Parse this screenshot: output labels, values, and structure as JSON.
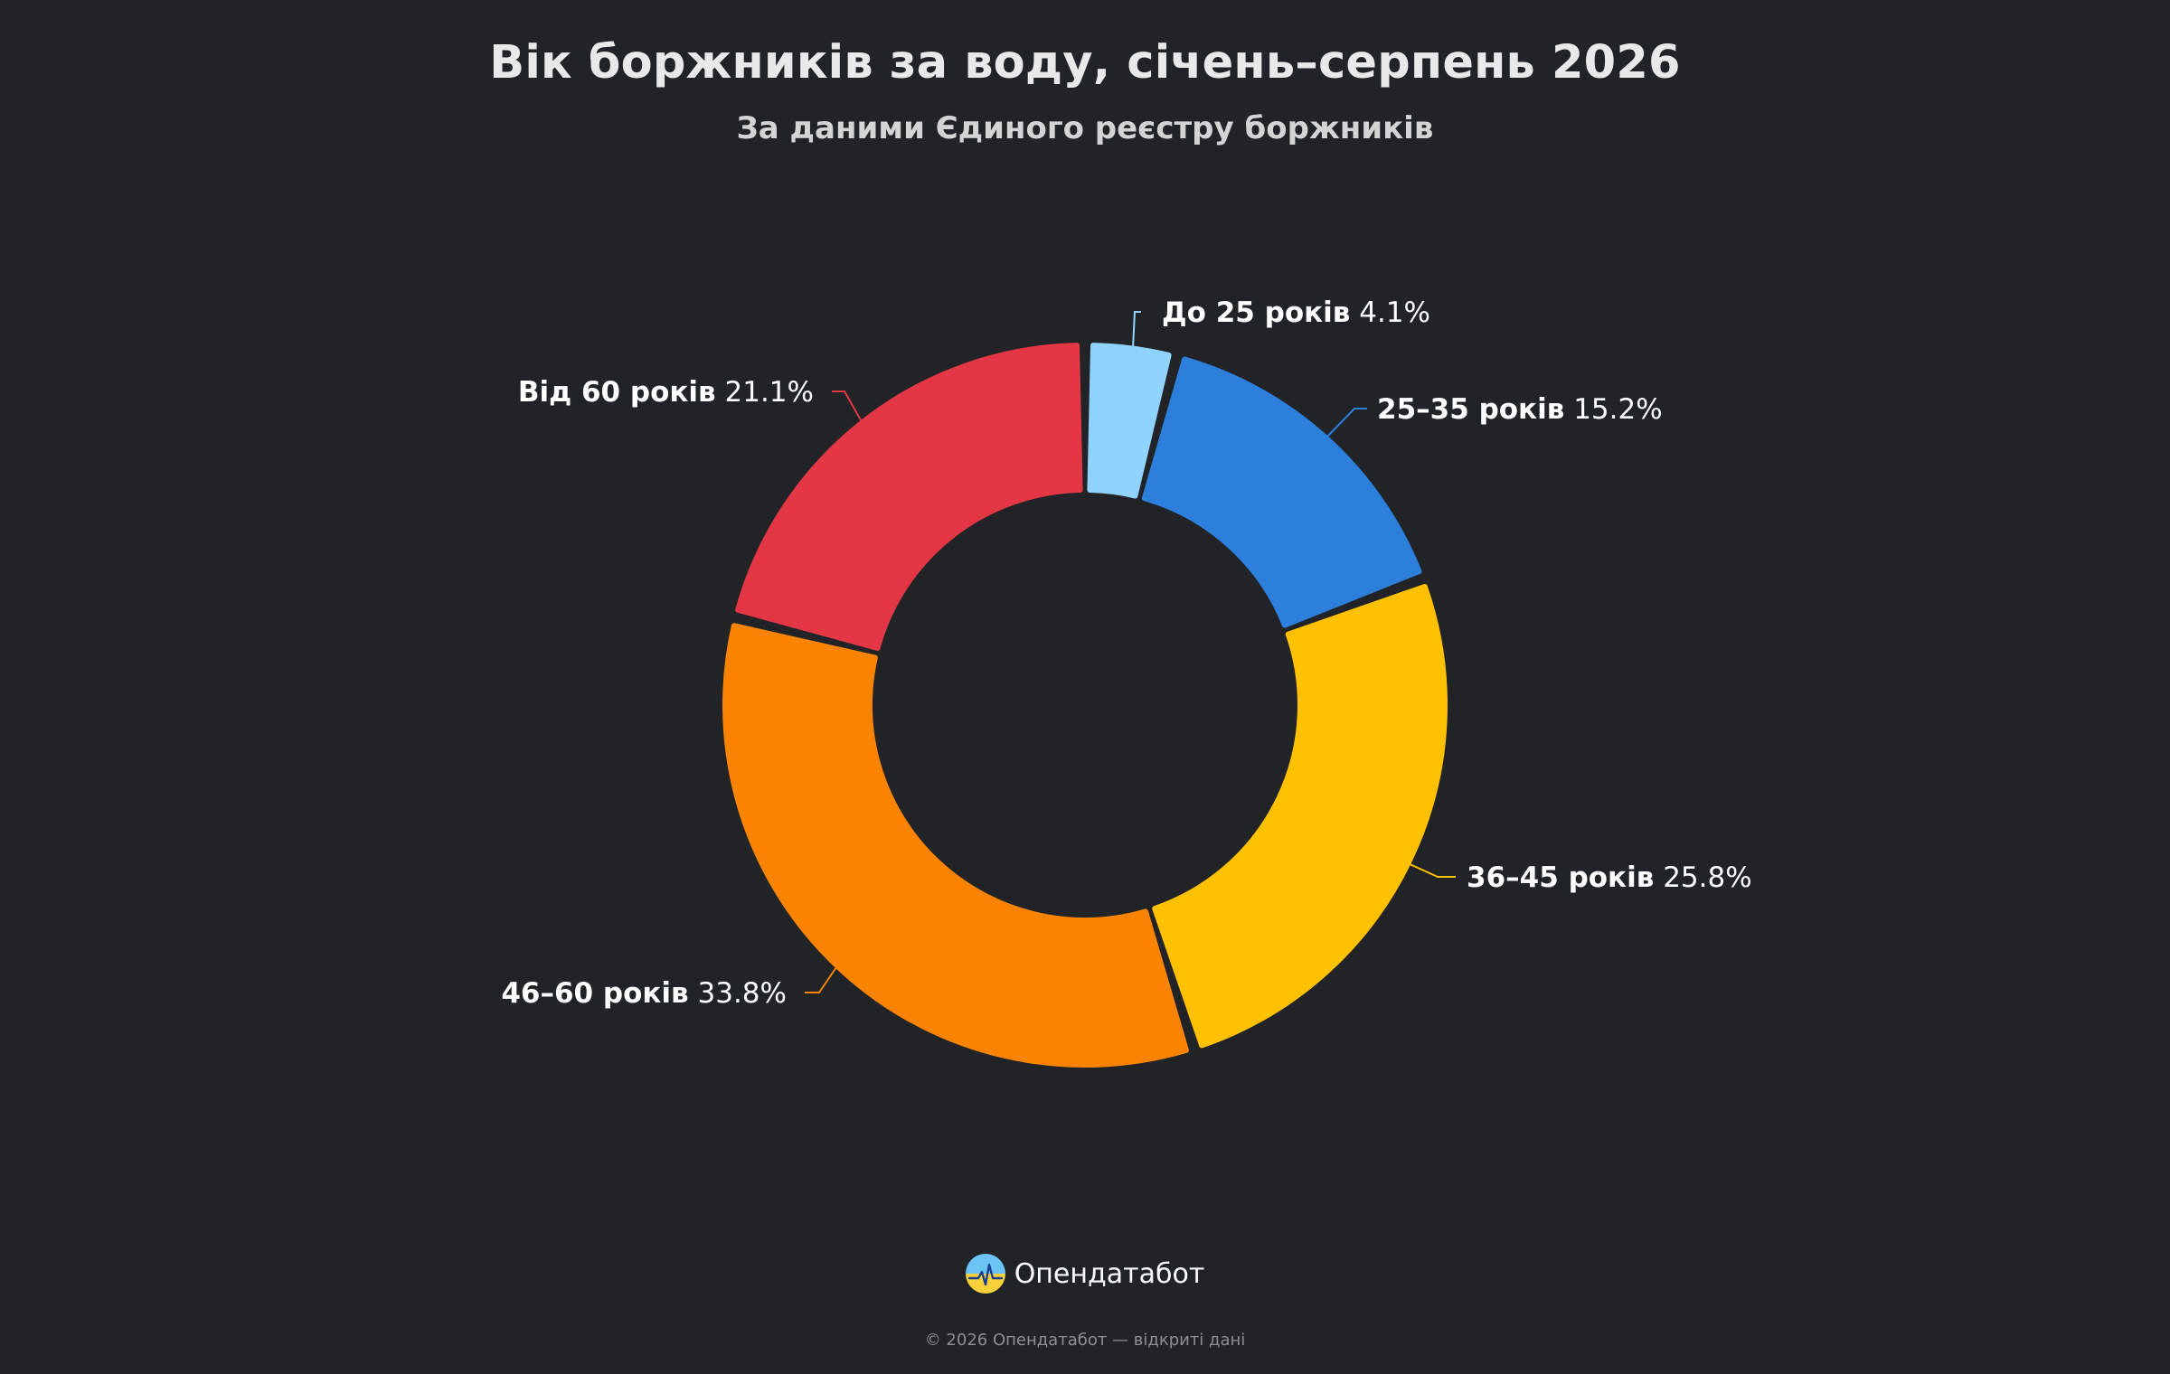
{
  "title": "Вік боржників за воду, січень–серпень 2026",
  "subtitle": "За даними Єдиного реєстру боржників",
  "chart_data": {
    "type": "pie",
    "variant": "donut",
    "slices": [
      {
        "label": "До 25 років",
        "value": 4.1,
        "display": "4.1%",
        "color": "#8fd3fe"
      },
      {
        "label": "25–35 років",
        "value": 15.2,
        "display": "15.2%",
        "color": "#2d7fdc"
      },
      {
        "label": "36–45 років",
        "value": 25.8,
        "display": "25.8%",
        "color": "#ffc100"
      },
      {
        "label": "46–60 років",
        "value": 33.8,
        "display": "33.8%",
        "color": "#fa8402"
      },
      {
        "label": "Від 60 років",
        "value": 21.1,
        "display": "21.1%",
        "color": "#e43745"
      }
    ]
  },
  "brand": {
    "name": "Опендатабот",
    "logo_icon": "opendatabot-logo-icon"
  },
  "footer": {
    "text": "© 2026 Опендатабот — відкриті дані"
  },
  "colors": {
    "background": "#212327"
  }
}
